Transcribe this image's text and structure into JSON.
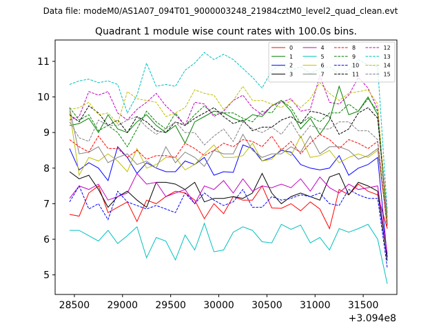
{
  "suptitle": "Data file: modeM0/AS1A07_094T01_9000003248_21984cztM0_level2_quad_clean.evt",
  "chart_data": {
    "type": "line",
    "title": "Quadrant 1 module wise count rates with 100.0s bins.",
    "xlabel": "",
    "ylabel": "",
    "x_offset_label": "+3.094e8",
    "xlim": [
      28300,
      31850
    ],
    "ylim": [
      4.45,
      11.6
    ],
    "x_ticks": [
      28500,
      29000,
      29500,
      30000,
      30500,
      31000,
      31500
    ],
    "x_tick_labels": [
      "28500",
      "29000",
      "29500",
      "30000",
      "30500",
      "31000",
      "31500"
    ],
    "y_ticks": [
      5,
      6,
      7,
      8,
      9,
      10,
      11
    ],
    "y_tick_labels": [
      "5",
      "6",
      "7",
      "8",
      "9",
      "10",
      "11"
    ],
    "legend_position": "upper right",
    "x": [
      28450,
      28550,
      28650,
      28750,
      28850,
      28950,
      29050,
      29150,
      29250,
      29350,
      29450,
      29550,
      29650,
      29750,
      29850,
      29950,
      30050,
      30150,
      30250,
      30350,
      30450,
      30550,
      30650,
      30750,
      30850,
      30950,
      31050,
      31150,
      31250,
      31350,
      31450,
      31550,
      31650,
      31750
    ],
    "series": [
      {
        "name": "0",
        "color": "#ff0000",
        "dash": "solid",
        "values": [
          6.7,
          6.65,
          7.3,
          7.5,
          6.75,
          6.9,
          7.05,
          6.5,
          7.1,
          7.0,
          7.2,
          7.35,
          7.3,
          7.1,
          6.58,
          7.0,
          6.72,
          7.2,
          7.1,
          7.1,
          7.5,
          6.88,
          6.87,
          7.0,
          6.8,
          7.05,
          6.85,
          6.3,
          7.4,
          7.25,
          7.55,
          7.35,
          7.25,
          6.3
        ]
      },
      {
        "name": "1",
        "color": "#008000",
        "dash": "solid",
        "values": [
          9.2,
          9.25,
          9.4,
          9.0,
          9.5,
          9.1,
          9.0,
          9.3,
          9.5,
          9.2,
          9.0,
          9.2,
          8.7,
          9.3,
          9.45,
          9.6,
          9.55,
          9.4,
          9.3,
          9.5,
          9.45,
          9.75,
          9.9,
          9.6,
          9.1,
          9.4,
          8.95,
          9.35,
          10.3,
          9.5,
          9.6,
          10.0,
          9.5,
          6.5
        ]
      },
      {
        "name": "2",
        "color": "#0000ff",
        "dash": "solid",
        "values": [
          8.55,
          7.95,
          8.15,
          8.0,
          7.65,
          8.6,
          8.3,
          7.85,
          8.15,
          8.0,
          7.9,
          7.9,
          8.2,
          8.1,
          8.3,
          7.8,
          7.9,
          7.88,
          8.65,
          8.55,
          8.2,
          8.3,
          8.5,
          8.45,
          8.1,
          8.0,
          7.95,
          8.0,
          8.35,
          7.8,
          8.0,
          8.1,
          8.3,
          5.5
        ]
      },
      {
        "name": "3",
        "color": "#000000",
        "dash": "solid",
        "values": [
          7.9,
          7.7,
          7.8,
          7.4,
          6.9,
          7.2,
          7.35,
          7.1,
          6.9,
          7.6,
          7.6,
          7.55,
          7.4,
          7.6,
          7.05,
          7.15,
          7.15,
          7.2,
          7.15,
          7.3,
          7.85,
          7.3,
          7.0,
          7.2,
          7.3,
          7.2,
          7.1,
          7.75,
          7.85,
          7.25,
          7.6,
          7.5,
          7.35,
          5.4
        ]
      },
      {
        "name": "4",
        "color": "#bf00bf",
        "dash": "solid",
        "values": [
          7.15,
          7.5,
          7.4,
          7.55,
          7.1,
          7.2,
          7.3,
          7.85,
          7.55,
          7.6,
          7.2,
          7.3,
          7.4,
          7.0,
          7.5,
          7.4,
          7.65,
          7.3,
          7.7,
          7.35,
          7.5,
          7.45,
          7.55,
          7.45,
          7.7,
          7.35,
          7.75,
          7.45,
          7.3,
          7.55,
          7.4,
          7.45,
          7.5,
          5.6
        ]
      },
      {
        "name": "5",
        "color": "#00bfbf",
        "dash": "solid",
        "values": [
          6.25,
          6.25,
          6.1,
          5.95,
          6.25,
          5.88,
          6.1,
          6.35,
          5.48,
          6.05,
          5.95,
          5.42,
          6.12,
          5.7,
          6.45,
          5.65,
          5.7,
          6.2,
          6.35,
          6.25,
          5.93,
          5.9,
          6.42,
          6.28,
          6.4,
          5.9,
          6.05,
          5.7,
          6.3,
          6.2,
          6.3,
          6.42,
          6.0,
          4.75
        ]
      },
      {
        "name": "6",
        "color": "#bfbf00",
        "dash": "solid",
        "values": [
          9.6,
          7.8,
          8.3,
          8.2,
          8.4,
          8.2,
          7.9,
          8.55,
          8.0,
          8.1,
          8.3,
          8.3,
          7.95,
          8.1,
          8.4,
          8.65,
          8.3,
          8.3,
          8.35,
          8.7,
          8.2,
          8.25,
          8.55,
          8.35,
          8.9,
          8.3,
          8.35,
          8.5,
          8.15,
          8.3,
          8.4,
          8.3,
          8.5,
          6.4
        ]
      },
      {
        "name": "7",
        "color": "#808080",
        "dash": "solid",
        "values": [
          9.7,
          8.4,
          8.45,
          8.6,
          8.15,
          8.3,
          8.4,
          8.1,
          8.2,
          8.0,
          8.6,
          8.15,
          8.45,
          8.3,
          8.05,
          8.5,
          8.4,
          8.4,
          8.95,
          8.5,
          8.3,
          8.4,
          8.4,
          8.6,
          8.45,
          8.9,
          8.4,
          8.6,
          8.6,
          8.5,
          8.25,
          8.35,
          8.55,
          6.4
        ]
      },
      {
        "name": "8",
        "color": "#ff0000",
        "dash": "dashed",
        "values": [
          8.8,
          8.6,
          8.45,
          8.9,
          8.55,
          8.55,
          8.3,
          8.5,
          8.25,
          8.35,
          8.35,
          8.3,
          8.7,
          8.55,
          8.35,
          8.5,
          8.7,
          8.6,
          8.8,
          8.75,
          8.6,
          8.9,
          8.5,
          8.75,
          8.4,
          8.7,
          8.95,
          8.8,
          8.55,
          8.8,
          8.7,
          8.55,
          8.75,
          6.3
        ]
      },
      {
        "name": "9",
        "color": "#008000",
        "dash": "dashed",
        "values": [
          9.7,
          9.35,
          9.5,
          9.05,
          9.2,
          9.0,
          8.6,
          9.1,
          9.6,
          9.3,
          9.1,
          9.55,
          9.2,
          9.5,
          9.75,
          9.5,
          9.55,
          9.55,
          9.4,
          9.3,
          9.6,
          9.55,
          9.9,
          9.7,
          9.25,
          9.45,
          9.3,
          9.55,
          9.55,
          9.8,
          9.6,
          9.95,
          9.6,
          6.4
        ]
      },
      {
        "name": "10",
        "color": "#0000ff",
        "dash": "dashed",
        "values": [
          7.05,
          7.5,
          6.85,
          7.0,
          6.55,
          7.35,
          7.05,
          6.95,
          6.85,
          6.95,
          6.85,
          6.75,
          7.3,
          7.0,
          7.3,
          7.1,
          6.95,
          7.05,
          7.4,
          6.9,
          6.9,
          7.2,
          7.1,
          7.15,
          7.25,
          7.2,
          7.3,
          7.0,
          6.95,
          7.4,
          7.25,
          7.15,
          7.15,
          5.2
        ]
      },
      {
        "name": "11",
        "color": "#000000",
        "dash": "dashed",
        "values": [
          9.5,
          9.3,
          9.75,
          9.55,
          9.2,
          9.35,
          9.0,
          9.45,
          9.3,
          9.05,
          9.0,
          9.3,
          9.2,
          9.4,
          9.55,
          9.7,
          9.45,
          9.25,
          9.35,
          9.05,
          9.15,
          9.15,
          9.35,
          9.45,
          9.25,
          9.6,
          9.55,
          9.45,
          8.95,
          9.1,
          9.55,
          9.7,
          9.4,
          6.6
        ]
      },
      {
        "name": "12",
        "color": "#bf00bf",
        "dash": "dashed",
        "values": [
          9.35,
          9.45,
          10.15,
          10.05,
          10.15,
          9.55,
          9.35,
          9.65,
          9.85,
          10.1,
          9.75,
          9.5,
          9.2,
          9.85,
          9.8,
          9.45,
          9.6,
          9.9,
          10.05,
          9.7,
          9.5,
          9.75,
          9.85,
          9.95,
          9.6,
          9.65,
          10.6,
          9.85,
          9.8,
          10.05,
          10.55,
          10.25,
          9.65,
          6.7
        ]
      },
      {
        "name": "13",
        "color": "#00bfbf",
        "dash": "dashed",
        "values": [
          10.35,
          10.45,
          10.5,
          10.4,
          10.45,
          10.35,
          9.55,
          10.05,
          10.95,
          10.3,
          10.35,
          10.3,
          10.75,
          10.95,
          11.25,
          11.05,
          11.2,
          11.05,
          10.8,
          10.55,
          10.25,
          10.75,
          10.9,
          10.75,
          10.85,
          10.65,
          10.8,
          10.85,
          10.65,
          10.75,
          11.05,
          10.9,
          10.85,
          6.8
        ]
      },
      {
        "name": "14",
        "color": "#bfbf00",
        "dash": "dashed",
        "values": [
          9.65,
          9.7,
          9.85,
          9.5,
          9.55,
          9.25,
          10.15,
          9.95,
          9.9,
          9.85,
          9.45,
          9.55,
          9.7,
          10.2,
          10.1,
          10.05,
          9.65,
          9.9,
          10.3,
          9.9,
          9.9,
          9.8,
          9.7,
          9.9,
          9.7,
          9.95,
          10.4,
          10.1,
          9.9,
          10.1,
          10.15,
          10.2,
          9.8,
          6.5
        ]
      },
      {
        "name": "15",
        "color": "#808080",
        "dash": "dashed",
        "values": [
          9.3,
          8.85,
          8.75,
          9.35,
          9.2,
          9.2,
          9.35,
          9.45,
          9.15,
          8.95,
          9.1,
          9.3,
          9.0,
          9.0,
          8.65,
          8.9,
          9.1,
          8.75,
          9.3,
          9.1,
          9.0,
          9.15,
          8.95,
          9.3,
          8.85,
          9.2,
          9.1,
          9.1,
          9.3,
          9.3,
          9.05,
          9.05,
          8.8,
          6.45
        ]
      }
    ]
  }
}
